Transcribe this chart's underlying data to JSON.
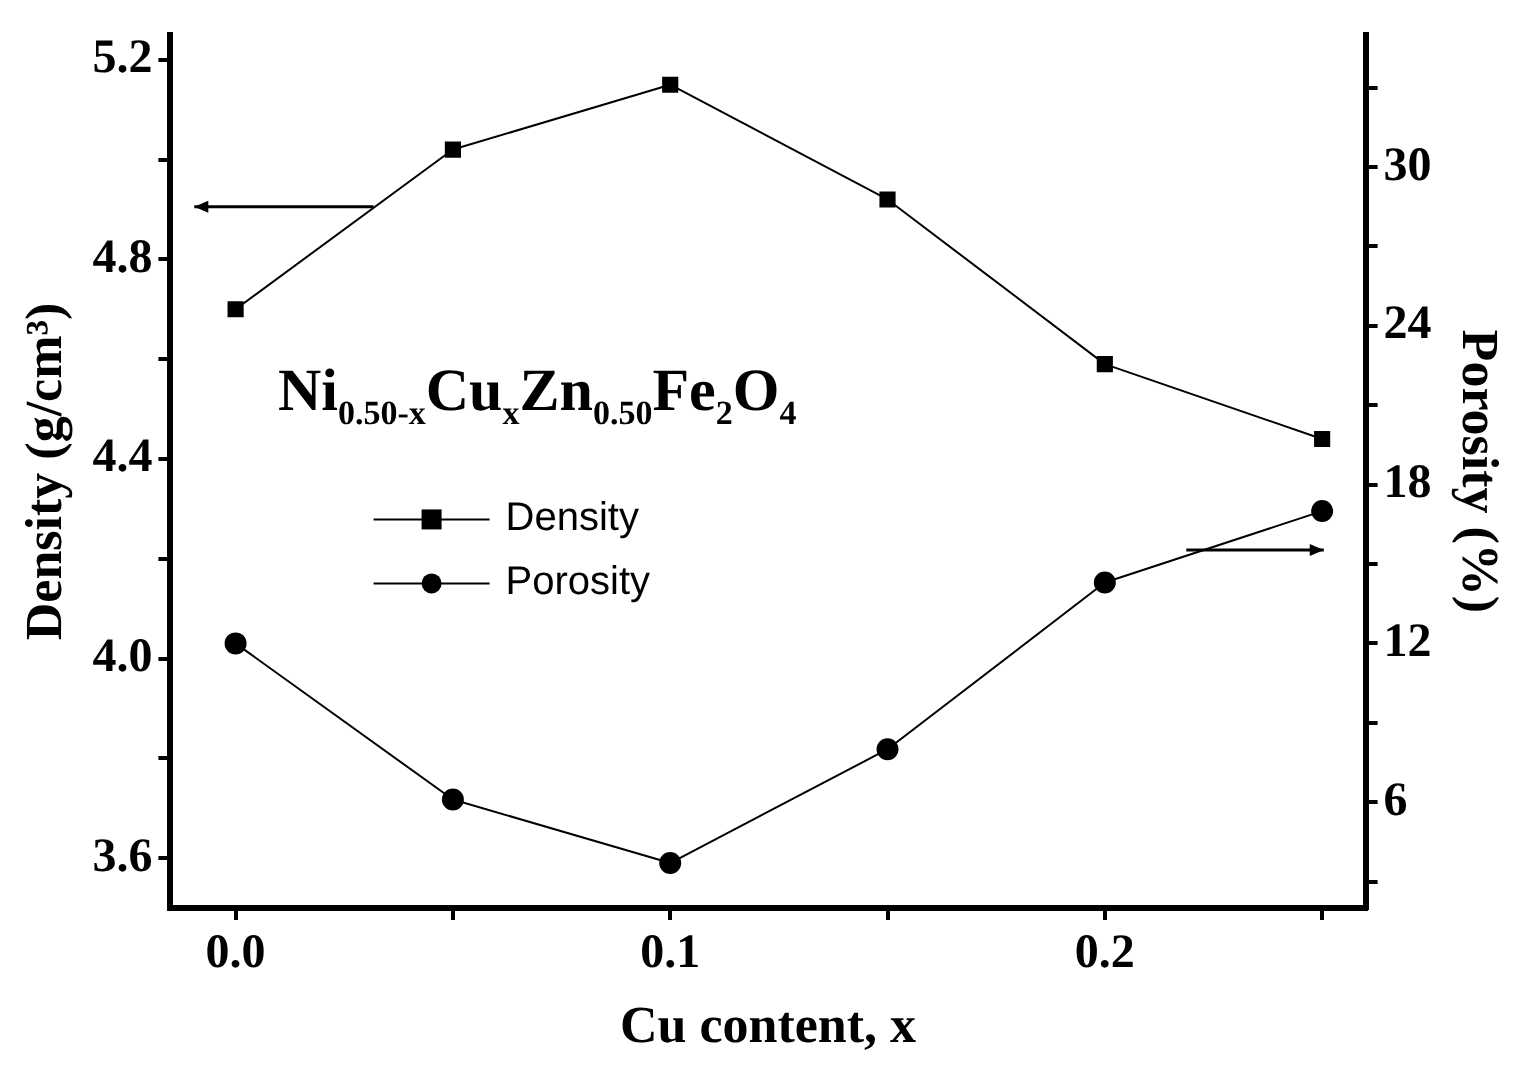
{
  "chart_data": {
    "type": "line",
    "xlabel": "Cu content, x",
    "ylabel": "Density (g/cm³)",
    "y2label": "Porosity (%)",
    "x": [
      0,
      0.05,
      0.1,
      0.15,
      0.2,
      0.25
    ],
    "series": [
      {
        "name": "Density",
        "color": "#000000",
        "marker": "square",
        "values": [
          4.7,
          5.02,
          5.15,
          4.92,
          4.59,
          4.44
        ]
      },
      {
        "name": "Porosity",
        "color": "#000000",
        "marker": "circle",
        "axis": "y2",
        "values": [
          12.0,
          6.1,
          3.7,
          8.0,
          14.3,
          17.0
        ]
      }
    ],
    "xlim": [
      -0.015,
      0.26
    ],
    "xticks": [
      {
        "value": 0,
        "label": "0.0"
      },
      {
        "value": 0.05,
        "label": null
      },
      0.1,
      {
        "value": 0.15,
        "label": null
      },
      0.2,
      {
        "value": 0.25,
        "label": null
      }
    ],
    "ylim": [
      3.5,
      5.25
    ],
    "yticks": [
      {
        "value": 3.6,
        "label": "3.6"
      },
      {
        "value": 3.8,
        "label": null
      },
      {
        "value": 4.0,
        "label": "4.0"
      },
      {
        "value": 4.2,
        "label": null
      },
      {
        "value": 4.4,
        "label": "4.4"
      },
      {
        "value": 4.6,
        "label": null
      },
      {
        "value": 4.8,
        "label": "4.8"
      },
      {
        "value": 5.0,
        "label": null
      },
      {
        "value": 5.2,
        "label": "5.2"
      }
    ],
    "y2lim": [
      2,
      35
    ],
    "y2ticks": [
      {
        "value": 3,
        "label": null
      },
      6,
      {
        "value": 9,
        "label": null
      },
      12,
      {
        "value": 15,
        "label": null
      },
      18,
      {
        "value": 21,
        "label": null
      },
      24,
      {
        "value": 27,
        "label": null
      },
      30,
      {
        "value": 33,
        "label": null
      }
    ],
    "annotations": [
      "Ni$_{0.50-x}$Cu$_{x}$Zn$_{0.50}$Fe$_{2}$O$_{4}$"
    ],
    "legend": "center left",
    "grid": false,
    "line_style": "solid"
  }
}
